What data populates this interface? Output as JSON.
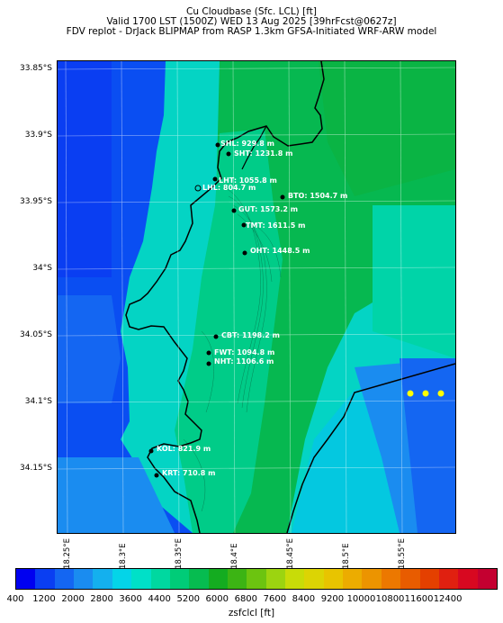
{
  "header": {
    "title": "Cu Cloudbase (Sfc. LCL) [ft]",
    "valid": "Valid 1700 LST (1500Z) WED 13 Aug 2025 [39hrFcst@0627z]",
    "model": "FDV replot - DrJack BLIPMAP from RASP 1.3km GFSA-Initiated WRF-ARW model"
  },
  "map": {
    "lat_labels": [
      "33.85°S",
      "33.9°S",
      "33.95°S",
      "34°S",
      "34.05°S",
      "34.1°S",
      "34.15°S"
    ],
    "lon_labels": [
      "18.25°E",
      "18.3°E",
      "18.35°E",
      "18.4°E",
      "18.45°E",
      "18.5°E",
      "18.55°E"
    ],
    "stations": [
      {
        "label": "SHL: 929.8 m"
      },
      {
        "label": "SHT: 1231.8 m"
      },
      {
        "label": "LHT: 1055.8 m"
      },
      {
        "label": "LHL: 804.7 m"
      },
      {
        "label": "BTO: 1504.7 m"
      },
      {
        "label": "GUT: 1573.2 m"
      },
      {
        "label": "TMT: 1611.5 m"
      },
      {
        "label": "OHT: 1448.5 m"
      },
      {
        "label": "CBT: 1198.2 m"
      },
      {
        "label": "FWT: 1094.8 m"
      },
      {
        "label": "NHT: 1106.6 m"
      },
      {
        "label": "KOL: 821.9 m"
      },
      {
        "label": "KRT: 710.8 m"
      }
    ],
    "marker_color": "#ffff00"
  },
  "colorbar": {
    "title": "zsfclcl [ft]",
    "ticks": [
      "400",
      "1200",
      "2000",
      "2800",
      "3600",
      "4400",
      "5200",
      "6000",
      "6800",
      "7600",
      "8400",
      "9200",
      "10000",
      "10800",
      "11600",
      "12400"
    ],
    "colors": [
      "#0000f0",
      "#0a3ef2",
      "#1466f2",
      "#1a8cf0",
      "#14b0ee",
      "#04d4e8",
      "#00e0c8",
      "#00d8a0",
      "#00cc78",
      "#06bc50",
      "#14ac20",
      "#3cb414",
      "#6cc410",
      "#9cd410",
      "#c8dc08",
      "#dcd404",
      "#e8c400",
      "#ecac00",
      "#ec9400",
      "#ec7800",
      "#e85c00",
      "#e44000",
      "#e02010",
      "#d80820",
      "#c40030"
    ]
  }
}
